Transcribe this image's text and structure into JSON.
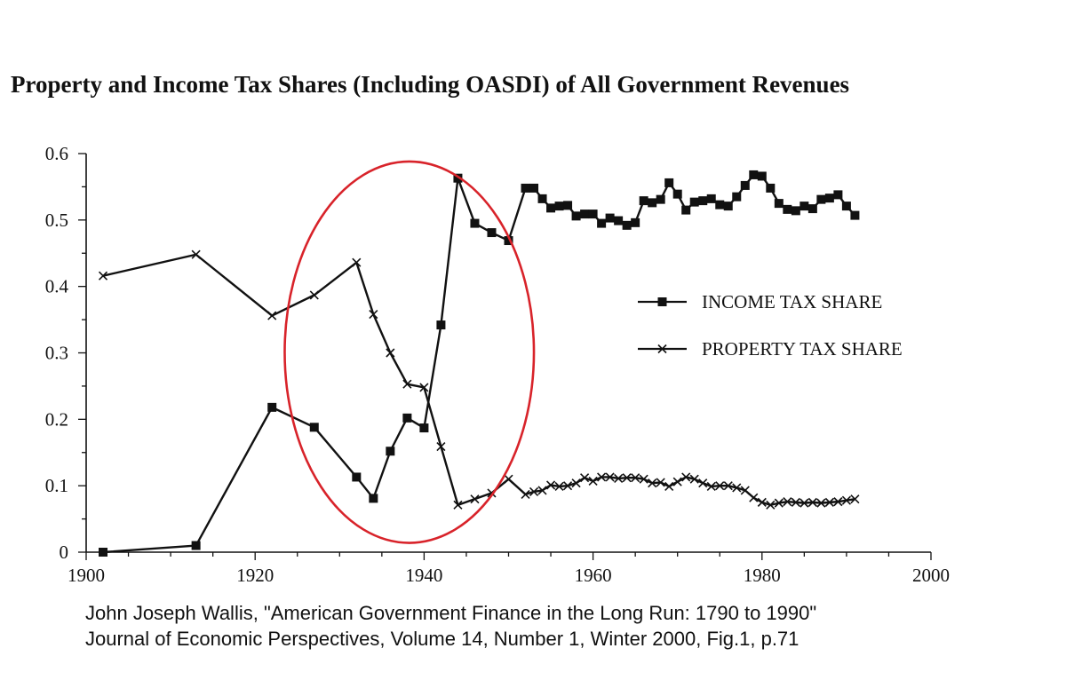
{
  "chart_data": {
    "type": "line",
    "title": "Property and Income Tax Shares (Including OASDI) of All Government Revenues",
    "xlabel": "",
    "ylabel": "",
    "xlim": [
      1900,
      2000
    ],
    "ylim": [
      0,
      0.6
    ],
    "x_ticks": [
      "1900",
      "1920",
      "1940",
      "1960",
      "1980",
      "2000"
    ],
    "y_ticks": [
      "0",
      "0.1",
      "0.2",
      "0.3",
      "0.4",
      "0.5",
      "0.6"
    ],
    "grid": false,
    "legend_position": "right-center",
    "series": [
      {
        "name": "INCOME TAX SHARE",
        "marker": "square",
        "points": [
          [
            1902,
            0.0
          ],
          [
            1913,
            0.01
          ],
          [
            1922,
            0.218
          ],
          [
            1927,
            0.188
          ],
          [
            1932,
            0.113
          ],
          [
            1934,
            0.081
          ],
          [
            1936,
            0.152
          ],
          [
            1938,
            0.202
          ],
          [
            1940,
            0.187
          ],
          [
            1942,
            0.342
          ],
          [
            1944,
            0.563
          ],
          [
            1946,
            0.495
          ],
          [
            1948,
            0.481
          ],
          [
            1950,
            0.469
          ],
          [
            1952,
            0.548
          ],
          [
            1953,
            0.548
          ],
          [
            1954,
            0.532
          ],
          [
            1955,
            0.518
          ],
          [
            1956,
            0.521
          ],
          [
            1957,
            0.522
          ],
          [
            1958,
            0.506
          ],
          [
            1959,
            0.509
          ],
          [
            1960,
            0.509
          ],
          [
            1961,
            0.495
          ],
          [
            1962,
            0.503
          ],
          [
            1963,
            0.499
          ],
          [
            1964,
            0.492
          ],
          [
            1965,
            0.496
          ],
          [
            1966,
            0.529
          ],
          [
            1967,
            0.526
          ],
          [
            1968,
            0.531
          ],
          [
            1969,
            0.556
          ],
          [
            1970,
            0.539
          ],
          [
            1971,
            0.515
          ],
          [
            1972,
            0.527
          ],
          [
            1973,
            0.529
          ],
          [
            1974,
            0.532
          ],
          [
            1975,
            0.523
          ],
          [
            1976,
            0.521
          ],
          [
            1977,
            0.535
          ],
          [
            1978,
            0.552
          ],
          [
            1979,
            0.568
          ],
          [
            1980,
            0.566
          ],
          [
            1981,
            0.548
          ],
          [
            1982,
            0.525
          ],
          [
            1983,
            0.516
          ],
          [
            1984,
            0.514
          ],
          [
            1985,
            0.521
          ],
          [
            1986,
            0.517
          ],
          [
            1987,
            0.531
          ],
          [
            1988,
            0.533
          ],
          [
            1989,
            0.538
          ],
          [
            1990,
            0.521
          ],
          [
            1991,
            0.507
          ]
        ]
      },
      {
        "name": "PROPERTY TAX SHARE",
        "marker": "x",
        "points": [
          [
            1902,
            0.416
          ],
          [
            1913,
            0.448
          ],
          [
            1922,
            0.356
          ],
          [
            1927,
            0.387
          ],
          [
            1932,
            0.436
          ],
          [
            1934,
            0.358
          ],
          [
            1936,
            0.3
          ],
          [
            1938,
            0.253
          ],
          [
            1940,
            0.248
          ],
          [
            1942,
            0.159
          ],
          [
            1944,
            0.071
          ],
          [
            1946,
            0.08
          ],
          [
            1948,
            0.089
          ],
          [
            1950,
            0.11
          ],
          [
            1952,
            0.087
          ],
          [
            1953,
            0.091
          ],
          [
            1954,
            0.093
          ],
          [
            1955,
            0.101
          ],
          [
            1956,
            0.099
          ],
          [
            1957,
            0.1
          ],
          [
            1958,
            0.104
          ],
          [
            1959,
            0.112
          ],
          [
            1960,
            0.107
          ],
          [
            1961,
            0.113
          ],
          [
            1962,
            0.113
          ],
          [
            1963,
            0.111
          ],
          [
            1964,
            0.112
          ],
          [
            1965,
            0.112
          ],
          [
            1966,
            0.11
          ],
          [
            1967,
            0.104
          ],
          [
            1968,
            0.105
          ],
          [
            1969,
            0.099
          ],
          [
            1970,
            0.106
          ],
          [
            1971,
            0.113
          ],
          [
            1972,
            0.11
          ],
          [
            1973,
            0.104
          ],
          [
            1974,
            0.099
          ],
          [
            1975,
            0.1
          ],
          [
            1976,
            0.1
          ],
          [
            1977,
            0.097
          ],
          [
            1978,
            0.093
          ],
          [
            1979,
            0.082
          ],
          [
            1980,
            0.075
          ],
          [
            1981,
            0.071
          ],
          [
            1982,
            0.074
          ],
          [
            1983,
            0.076
          ],
          [
            1984,
            0.075
          ],
          [
            1985,
            0.074
          ],
          [
            1986,
            0.075
          ],
          [
            1987,
            0.074
          ],
          [
            1988,
            0.075
          ],
          [
            1989,
            0.076
          ],
          [
            1990,
            0.078
          ],
          [
            1991,
            0.08
          ]
        ]
      }
    ],
    "annotations": [
      {
        "type": "ellipse",
        "color": "#d8232a",
        "x_range": [
          1923.5,
          1953
        ],
        "y_range": [
          0.014,
          0.588
        ]
      }
    ]
  },
  "citation": {
    "line1": "John Joseph Wallis, \"American Government Finance in the Long Run: 1790 to 1990\"",
    "line2": "Journal of Economic Perspectives, Volume 14, Number 1, Winter 2000, Fig.1, p.71"
  },
  "colors": {
    "ink": "#111111",
    "highlight": "#d8232a",
    "background": "#ffffff"
  }
}
